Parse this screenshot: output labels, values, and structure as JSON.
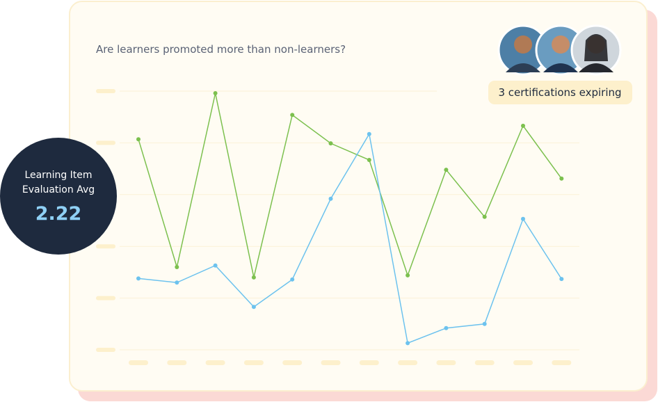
{
  "question": "Are learners promoted more than non-learners?",
  "badge": "3 certifications expiring",
  "metric": {
    "label": "Learning Item Evaluation Avg",
    "value": "2.22"
  },
  "chart_data": {
    "type": "line",
    "categories": [
      null,
      null,
      null,
      null,
      null,
      null,
      null,
      null,
      null,
      null,
      null,
      null
    ],
    "series": [
      {
        "color": "#7cc04e",
        "values": [
          4.07,
          1.6,
          4.96,
          1.4,
          4.54,
          3.99,
          3.67,
          1.44,
          3.48,
          2.57,
          4.33,
          3.31
        ]
      },
      {
        "color": "#6cc2ee",
        "values": [
          1.38,
          1.3,
          1.63,
          0.83,
          1.36,
          2.92,
          4.17,
          0.13,
          0.42,
          0.5,
          2.53,
          1.37
        ]
      }
    ],
    "ylim": [
      0,
      5
    ],
    "yticks": [
      0,
      1,
      2,
      3,
      4,
      5
    ],
    "grid": true
  }
}
